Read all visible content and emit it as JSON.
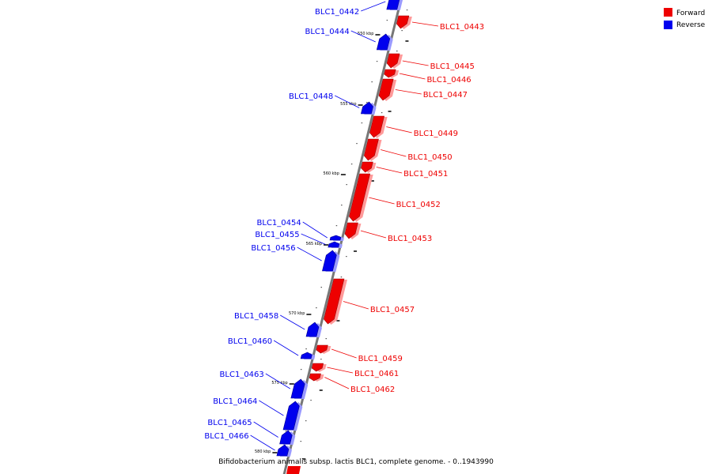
{
  "legend": [
    {
      "label": "Forward",
      "color": "#ee0000"
    },
    {
      "label": "Reverse",
      "color": "#0000ee"
    }
  ],
  "caption": "Bifidobacterium animalis subsp. lactis BLC1, complete genome. - 0..1943990",
  "colors": {
    "forward": "#ee0000",
    "forward_dark": "#a00000",
    "forward_light": "#ff9a9a",
    "reverse": "#0000ee",
    "reverse_dark": "#000090",
    "reverse_light": "#9a9aff",
    "axis": "#777777"
  },
  "ticks": [
    "550 kbp",
    "555 kbp",
    "560 kbp",
    "565 kbp",
    "570 kbp",
    "575 kbp",
    "580 kbp"
  ],
  "genes": [
    {
      "name": "BLC1_0442",
      "strand": "reverse"
    },
    {
      "name": "BLC1_0443",
      "strand": "forward"
    },
    {
      "name": "BLC1_0444",
      "strand": "reverse"
    },
    {
      "name": "BLC1_0445",
      "strand": "forward"
    },
    {
      "name": "BLC1_0446",
      "strand": "forward"
    },
    {
      "name": "BLC1_0447",
      "strand": "forward"
    },
    {
      "name": "BLC1_0448",
      "strand": "reverse"
    },
    {
      "name": "BLC1_0449",
      "strand": "forward"
    },
    {
      "name": "BLC1_0450",
      "strand": "forward"
    },
    {
      "name": "BLC1_0451",
      "strand": "forward"
    },
    {
      "name": "BLC1_0452",
      "strand": "forward"
    },
    {
      "name": "BLC1_0453",
      "strand": "forward"
    },
    {
      "name": "BLC1_0454",
      "strand": "reverse"
    },
    {
      "name": "BLC1_0455",
      "strand": "reverse"
    },
    {
      "name": "BLC1_0456",
      "strand": "reverse"
    },
    {
      "name": "BLC1_0457",
      "strand": "forward"
    },
    {
      "name": "BLC1_0458",
      "strand": "reverse"
    },
    {
      "name": "BLC1_0459",
      "strand": "forward"
    },
    {
      "name": "BLC1_0460",
      "strand": "reverse"
    },
    {
      "name": "BLC1_0461",
      "strand": "forward"
    },
    {
      "name": "BLC1_0462",
      "strand": "forward"
    },
    {
      "name": "BLC1_0463",
      "strand": "reverse"
    },
    {
      "name": "BLC1_0464",
      "strand": "reverse"
    },
    {
      "name": "BLC1_0465",
      "strand": "reverse"
    },
    {
      "name": "BLC1_0466",
      "strand": "reverse"
    }
  ]
}
